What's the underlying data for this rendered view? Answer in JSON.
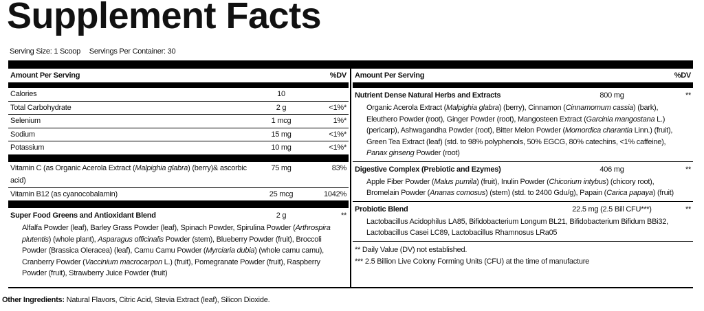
{
  "title": "Supplement Facts",
  "serving_size": "Serving Size: 1 Scoop",
  "servings_per_container": "Servings Per Container: 30",
  "left": {
    "header": {
      "amount": "Amount Per Serving",
      "dv": "%DV"
    },
    "groups": [
      [
        {
          "name": "Calories",
          "amount": "10"
        },
        {
          "name": "Total Carbohydrate",
          "amount": "2 g",
          "dv": "<1%*"
        },
        {
          "name": "Selenium",
          "amount": "1 mcg",
          "dv": "1%*"
        },
        {
          "name": "Sodium",
          "amount": "15 mg",
          "dv": "<1%*"
        },
        {
          "name": "Potassium",
          "amount": "10 mg",
          "dv": "<1%*"
        }
      ],
      [
        {
          "name": [
            "Vitamin C (as Organic Acerola Extract (",
            {
              "italic": "Malpighia glabra"
            },
            ") (berry)& ascorbic acid)"
          ],
          "amount": "75 mg",
          "dv": "83%"
        },
        {
          "name": "Vitamin B12 (as cyanocobalamin)",
          "amount": "25 mcg",
          "dv": "1042%"
        }
      ]
    ],
    "blend": {
      "name": "Super Food Greens and Antioxidant Blend",
      "amount": "2 g",
      "dv": "**",
      "desc": [
        "Alfalfa Powder (leaf), Barley Grass Powder (leaf), Spinach Powder, Spirulina Powder (",
        {
          "italic": "Arthrospira plutentis"
        },
        ") (whole plant), ",
        {
          "italic": "Asparagus officinalis"
        },
        " Powder (stem), Blueberry Powder (fruit), Broccoli Powder (Brassica Oleracea) (leaf), Camu Camu Powder (",
        {
          "italic": "Myrciaria dubia"
        },
        ") (whole camu camu), Cranberry Powder (",
        {
          "italic": "Vaccinium macrocarpon"
        },
        " L.) (fruit), Pomegranate Powder (fruit), Raspberry Powder (fruit), Strawberry Juice Powder (fruit)"
      ]
    }
  },
  "right": {
    "header": {
      "amount": "Amount Per Serving",
      "dv": "%DV"
    },
    "blends": [
      {
        "name": "Nutrient Dense Natural Herbs and Extracts",
        "amount": "800 mg",
        "dv": "**",
        "desc": [
          "Organic Acerola Extract (",
          {
            "italic": "Malpighia glabra"
          },
          ") (berry), Cinnamon (",
          {
            "italic": "Cinnamomum cassia"
          },
          ") (bark), Eleuthero Powder (root), Ginger Powder (root), Mangosteen Extract (",
          {
            "italic": "Garcinia mangostana"
          },
          " L.) (pericarp), Ashwagandha Powder (root), Bitter Melon Powder (",
          {
            "italic": "Momordica charantia"
          },
          " Linn.) (fruit), Green Tea Extract (leaf) (std. to 98% polyphenols, 50% EGCG, 80% catechins, <1% caffeine), ",
          {
            "italic": "Panax ginseng"
          },
          " Powder (root)"
        ]
      },
      {
        "name": "Digestive Complex (Prebiotic and Ezymes)",
        "amount": "406 mg",
        "dv": "**",
        "desc": [
          "Apple Fiber Powder (",
          {
            "italic": "Malus pumila"
          },
          ") (fruit), Inulin Powder (",
          {
            "italic": "Chicorium intybus"
          },
          ") (chicory root), Bromelain Powder (",
          {
            "italic": "Ananas comosus"
          },
          ") (stem) (std. to 2400 Gdu/g), Papain (",
          {
            "italic": "Carica papaya"
          },
          ") (fruit)"
        ]
      },
      {
        "name": "Probiotic Blend",
        "amount": "22.5 mg (2.5 Bill CFU***)",
        "dv": "**",
        "desc": [
          "Lactobacillus Acidophilus LA85, Bifidobacterium Longum BL21, Bifidobacterium Bifidum BBi32, Lactobacillus Casei LC89, Lactobacillus Rhamnosus LRa05"
        ]
      }
    ],
    "footnotes": [
      "** Daily Value (DV) not established.",
      "*** 2.5 Billion Live Colony Forming Units (CFU) at the time of manufacture"
    ]
  },
  "other_ingredients": {
    "label": "Other Ingredients:",
    "text": "Natural Flavors, Citric Acid, Stevia Extract (leaf), Silicon Dioxide."
  }
}
